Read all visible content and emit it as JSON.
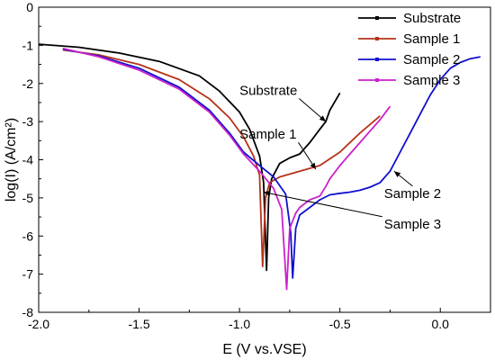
{
  "chart_data": {
    "type": "line",
    "title": "",
    "xlabel": "E (V vs.VSE)",
    "ylabel": "log(I) (A/cm²)",
    "xlim": [
      -2.0,
      0.25
    ],
    "ylim": [
      -8,
      0
    ],
    "x_ticks": [
      -2.0,
      -1.5,
      -1.0,
      -0.5,
      0.0
    ],
    "x_tick_labels": [
      "-2.0",
      "-1.5",
      "-1.0",
      "-0.5",
      "0.0"
    ],
    "y_ticks": [
      0,
      -1,
      -2,
      -3,
      -4,
      -5,
      -6,
      -7,
      -8
    ],
    "y_tick_labels": [
      "0",
      "-1",
      "-2",
      "-3",
      "-4",
      "-5",
      "-6",
      "-7",
      "-8"
    ],
    "grid": false,
    "legend_position": "top-right",
    "series": [
      {
        "name": "Substrate",
        "color": "#000000",
        "points": [
          [
            -2.0,
            -0.97
          ],
          [
            -1.8,
            -1.05
          ],
          [
            -1.6,
            -1.2
          ],
          [
            -1.4,
            -1.42
          ],
          [
            -1.2,
            -1.8
          ],
          [
            -1.1,
            -2.2
          ],
          [
            -1.0,
            -2.75
          ],
          [
            -0.95,
            -3.2
          ],
          [
            -0.9,
            -3.9
          ],
          [
            -0.88,
            -4.6
          ],
          [
            -0.865,
            -6.9
          ],
          [
            -0.855,
            -5.0
          ],
          [
            -0.84,
            -4.5
          ],
          [
            -0.8,
            -4.1
          ],
          [
            -0.75,
            -3.95
          ],
          [
            -0.7,
            -3.85
          ],
          [
            -0.65,
            -3.55
          ],
          [
            -0.6,
            -3.2
          ],
          [
            -0.57,
            -3.0
          ],
          [
            -0.55,
            -2.7
          ],
          [
            -0.5,
            -2.25
          ]
        ]
      },
      {
        "name": "Sample 1",
        "color": "#b5331a",
        "points": [
          [
            -1.88,
            -1.12
          ],
          [
            -1.7,
            -1.25
          ],
          [
            -1.5,
            -1.5
          ],
          [
            -1.3,
            -1.9
          ],
          [
            -1.15,
            -2.4
          ],
          [
            -1.05,
            -2.9
          ],
          [
            -0.98,
            -3.4
          ],
          [
            -0.93,
            -3.9
          ],
          [
            -0.9,
            -4.4
          ],
          [
            -0.885,
            -6.8
          ],
          [
            -0.87,
            -5.0
          ],
          [
            -0.85,
            -4.6
          ],
          [
            -0.8,
            -4.45
          ],
          [
            -0.7,
            -4.3
          ],
          [
            -0.6,
            -4.15
          ],
          [
            -0.5,
            -3.8
          ],
          [
            -0.4,
            -3.3
          ],
          [
            -0.3,
            -2.85
          ]
        ]
      },
      {
        "name": "Sample 2",
        "color": "#1010d0",
        "points": [
          [
            -1.88,
            -1.1
          ],
          [
            -1.7,
            -1.28
          ],
          [
            -1.5,
            -1.6
          ],
          [
            -1.3,
            -2.1
          ],
          [
            -1.15,
            -2.7
          ],
          [
            -1.05,
            -3.3
          ],
          [
            -0.98,
            -3.8
          ],
          [
            -0.9,
            -4.15
          ],
          [
            -0.83,
            -4.45
          ],
          [
            -0.77,
            -4.9
          ],
          [
            -0.745,
            -5.9
          ],
          [
            -0.735,
            -7.1
          ],
          [
            -0.72,
            -5.8
          ],
          [
            -0.7,
            -5.45
          ],
          [
            -0.65,
            -5.25
          ],
          [
            -0.6,
            -5.05
          ],
          [
            -0.55,
            -4.92
          ],
          [
            -0.5,
            -4.88
          ],
          [
            -0.45,
            -4.85
          ],
          [
            -0.4,
            -4.8
          ],
          [
            -0.35,
            -4.72
          ],
          [
            -0.3,
            -4.6
          ],
          [
            -0.25,
            -4.3
          ],
          [
            -0.2,
            -3.8
          ],
          [
            -0.15,
            -3.3
          ],
          [
            -0.1,
            -2.8
          ],
          [
            -0.05,
            -2.3
          ],
          [
            0.0,
            -1.9
          ],
          [
            0.05,
            -1.6
          ],
          [
            0.1,
            -1.45
          ],
          [
            0.15,
            -1.35
          ],
          [
            0.2,
            -1.3
          ]
        ]
      },
      {
        "name": "Sample 3",
        "color": "#cc20cc",
        "points": [
          [
            -1.88,
            -1.08
          ],
          [
            -1.7,
            -1.3
          ],
          [
            -1.5,
            -1.65
          ],
          [
            -1.3,
            -2.15
          ],
          [
            -1.15,
            -2.75
          ],
          [
            -1.05,
            -3.35
          ],
          [
            -0.98,
            -3.85
          ],
          [
            -0.9,
            -4.3
          ],
          [
            -0.83,
            -4.75
          ],
          [
            -0.79,
            -5.3
          ],
          [
            -0.765,
            -7.4
          ],
          [
            -0.75,
            -5.8
          ],
          [
            -0.72,
            -5.4
          ],
          [
            -0.7,
            -5.25
          ],
          [
            -0.65,
            -5.05
          ],
          [
            -0.6,
            -4.95
          ],
          [
            -0.57,
            -4.7
          ],
          [
            -0.55,
            -4.5
          ],
          [
            -0.5,
            -4.15
          ],
          [
            -0.45,
            -3.85
          ],
          [
            -0.4,
            -3.55
          ],
          [
            -0.35,
            -3.25
          ],
          [
            -0.3,
            -2.95
          ],
          [
            -0.25,
            -2.6
          ]
        ]
      }
    ],
    "annotations": [
      {
        "text": "Substrate",
        "label_at": [
          -1.0,
          -2.3
        ],
        "arrow_to": [
          -0.57,
          -3.0
        ]
      },
      {
        "text": "Sample 1",
        "label_at": [
          -1.0,
          -3.45
        ],
        "arrow_to": [
          -0.62,
          -4.25
        ]
      },
      {
        "text": "Sample 2",
        "label_at": [
          -0.28,
          -5.0
        ],
        "arrow_to": [
          -0.23,
          -4.3
        ]
      },
      {
        "text": "Sample 3",
        "label_at": [
          -0.28,
          -5.8
        ],
        "arrow_to": [
          -0.88,
          -4.85
        ]
      }
    ]
  }
}
